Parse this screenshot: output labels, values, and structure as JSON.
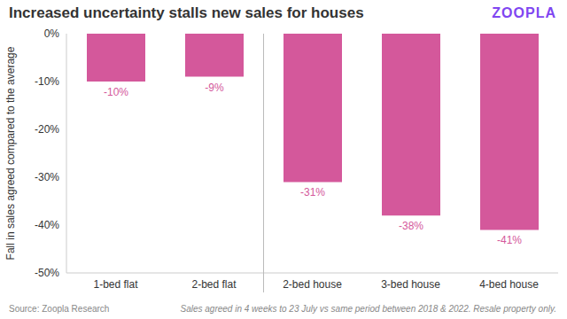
{
  "chart_data": {
    "type": "bar",
    "title": "Increased uncertainty stalls new sales for houses",
    "logo": "ZOOPLA",
    "ylabel": "Fall in sales agreed compared to the average",
    "source": "Source: Zoopla Research",
    "note": "Sales agreed in 4 weeks to 23 July vs same period between 2018 & 2022. Resale property only.",
    "categories": [
      "1-bed flat",
      "2-bed flat",
      "2-bed house",
      "3-bed house",
      "4-bed house"
    ],
    "values": [
      -10,
      -9,
      -31,
      -38,
      -41
    ],
    "value_labels": [
      "-10%",
      "-9%",
      "-31%",
      "-38%",
      "-41%"
    ],
    "color": "#d4589b",
    "ylim": [
      -50,
      0
    ],
    "yticks": [
      {
        "value": -50,
        "label": "-50%"
      },
      {
        "value": -40,
        "label": "-40%"
      },
      {
        "value": -30,
        "label": "-30%"
      },
      {
        "value": -20,
        "label": "-20%"
      },
      {
        "value": -10,
        "label": "-10%"
      },
      {
        "value": 0,
        "label": "0%"
      }
    ],
    "grid": false,
    "data_labels": true
  }
}
